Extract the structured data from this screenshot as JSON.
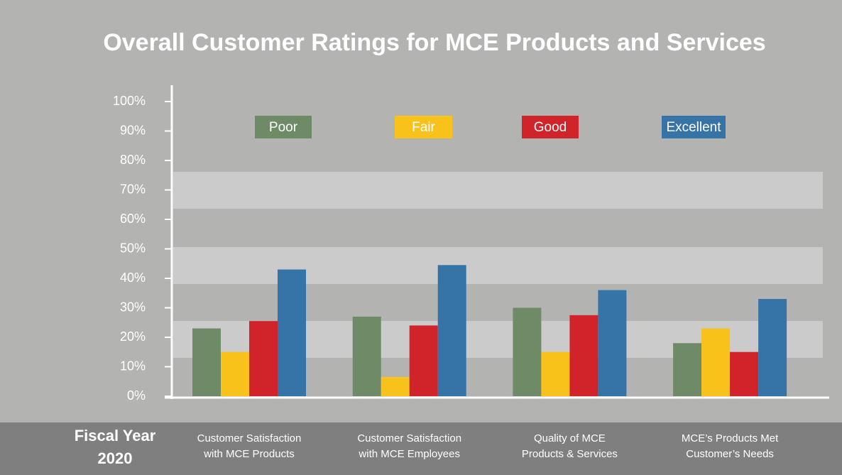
{
  "chart_data": {
    "type": "bar",
    "title": "Overall Customer Ratings for MCE Products and Services",
    "fiscal_label": "Fiscal Year\n2020",
    "categories": [
      "Customer Satisfaction\nwith MCE Products",
      "Customer Satisfaction\nwith MCE Employees",
      "Quality of MCE\nProducts & Services",
      "MCE’s Products Met\nCustomer’s Needs"
    ],
    "series": [
      {
        "name": "Poor",
        "color": "#6e8a66",
        "values": [
          23,
          27,
          30,
          18
        ]
      },
      {
        "name": "Fair",
        "color": "#f8c21a",
        "values": [
          15,
          6.5,
          15,
          23
        ]
      },
      {
        "name": "Good",
        "color": "#d1232a",
        "values": [
          25.5,
          24,
          27.5,
          15
        ]
      },
      {
        "name": "Excellent",
        "color": "#3674a8",
        "values": [
          43,
          44.5,
          36,
          33
        ]
      }
    ],
    "ylim": [
      0,
      100
    ],
    "yticks": [
      {
        "value": 0,
        "label": "0%"
      },
      {
        "value": 10,
        "label": "10%"
      },
      {
        "value": 20,
        "label": "20%"
      },
      {
        "value": 30,
        "label": "30%"
      },
      {
        "value": 40,
        "label": "40%"
      },
      {
        "value": 50,
        "label": "50%"
      },
      {
        "value": 60,
        "label": "60%"
      },
      {
        "value": 70,
        "label": "70%"
      },
      {
        "value": 80,
        "label": "80%"
      },
      {
        "value": 90,
        "label": "90%"
      },
      {
        "value": 100,
        "label": "100%"
      }
    ]
  }
}
